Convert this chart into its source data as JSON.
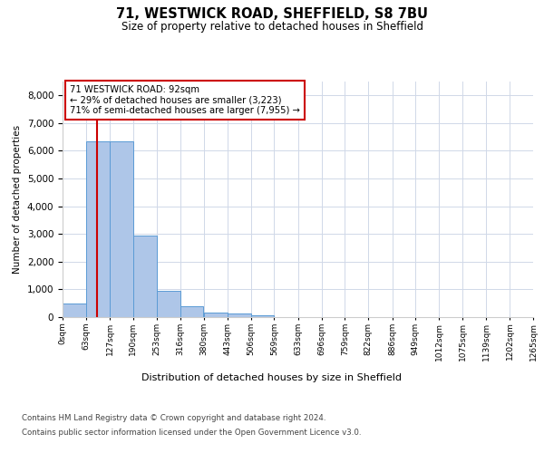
{
  "title_line1": "71, WESTWICK ROAD, SHEFFIELD, S8 7BU",
  "title_line2": "Size of property relative to detached houses in Sheffield",
  "xlabel": "Distribution of detached houses by size in Sheffield",
  "ylabel": "Number of detached properties",
  "annotation_title": "71 WESTWICK ROAD: 92sqm",
  "annotation_line2": "← 29% of detached houses are smaller (3,223)",
  "annotation_line3": "71% of semi-detached houses are larger (7,955) →",
  "property_size_sqm": 92,
  "bin_edges": [
    0,
    63,
    127,
    190,
    253,
    316,
    380,
    443,
    506,
    569,
    633,
    696,
    759,
    822,
    886,
    949,
    1012,
    1075,
    1139,
    1202,
    1265
  ],
  "bin_labels": [
    "0sqm",
    "63sqm",
    "127sqm",
    "190sqm",
    "253sqm",
    "316sqm",
    "380sqm",
    "443sqm",
    "506sqm",
    "569sqm",
    "633sqm",
    "696sqm",
    "759sqm",
    "822sqm",
    "886sqm",
    "949sqm",
    "1012sqm",
    "1075sqm",
    "1139sqm",
    "1202sqm",
    "1265sqm"
  ],
  "bar_heights": [
    500,
    6350,
    6350,
    2950,
    950,
    400,
    150,
    130,
    80,
    0,
    0,
    0,
    0,
    0,
    0,
    0,
    0,
    0,
    0,
    0
  ],
  "bar_color": "#aec6e8",
  "bar_edge_color": "#5b9bd5",
  "vline_x": 92,
  "vline_color": "#cc0000",
  "annotation_box_color": "#ffffff",
  "annotation_box_edge": "#cc0000",
  "ylim": [
    0,
    8500
  ],
  "yticks": [
    0,
    1000,
    2000,
    3000,
    4000,
    5000,
    6000,
    7000,
    8000
  ],
  "grid_color": "#d0d8e8",
  "background_color": "#ffffff",
  "footer_line1": "Contains HM Land Registry data © Crown copyright and database right 2024.",
  "footer_line2": "Contains public sector information licensed under the Open Government Licence v3.0."
}
